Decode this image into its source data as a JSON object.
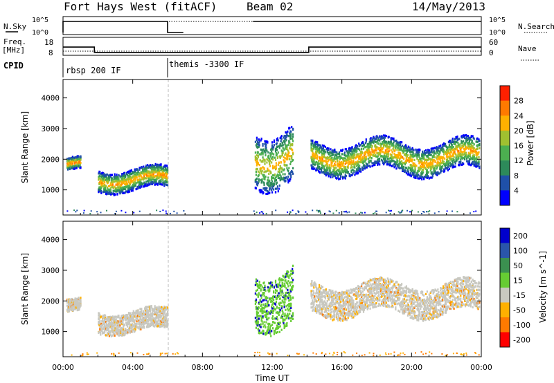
{
  "header": {
    "station": "Fort Hays West (fitACF)",
    "beam": "Beam 02",
    "date": "14/May/2013"
  },
  "left_labels": {
    "nsky": "N.Sky",
    "freq_line1": "Freq.",
    "freq_line2": "[MHz]",
    "cpid": "CPID"
  },
  "right_labels": {
    "nsearch": "N.Search",
    "nave": "Nave"
  },
  "cpid_segments": [
    {
      "label": "rbsp 200 IF",
      "start": 0,
      "end": 6
    },
    {
      "label": "themis -3300 IF",
      "start": 6,
      "end": 24
    }
  ],
  "x_axis": {
    "label": "Time UT",
    "range": [
      0,
      24
    ],
    "ticks": [
      0,
      4,
      8,
      12,
      16,
      20,
      24
    ],
    "tick_labels": [
      "00:00",
      "04:00",
      "08:00",
      "12:00",
      "16:00",
      "20:00",
      "00:00"
    ]
  },
  "colors": {
    "power_scale": [
      "#0000ff",
      "#1f50a8",
      "#2d8a5a",
      "#4caf50",
      "#a0c030",
      "#ffb000",
      "#ff7a00",
      "#ff2000"
    ],
    "velocity_scale": [
      "#0000cc",
      "#2a55aa",
      "#3b9050",
      "#66cc33",
      "#c8c8c0",
      "#ffb000",
      "#ff7a00",
      "#ff0000"
    ]
  },
  "chart_data": [
    {
      "type": "line",
      "name": "noise-panel",
      "ylabel_left": "N.Sky",
      "ylabel_right": "N.Search",
      "left_ticks": [
        "10^5",
        "10^0"
      ],
      "right_ticks": [
        "10^5",
        "10^0"
      ],
      "series": [
        {
          "name": "N.Sky",
          "style": "solid",
          "x": [
            0,
            0,
            0.1,
            6,
            6,
            6.9,
            6.9,
            10.9,
            10.9,
            24
          ],
          "y": [
            "low",
            "high",
            "high",
            "high",
            "low",
            "low",
            "none",
            "none",
            "high",
            "high"
          ]
        },
        {
          "name": "N.Search",
          "style": "dotted",
          "x": [
            0.1,
            6.9,
            10.9,
            24
          ],
          "y": [
            "high",
            "high",
            "high",
            "high"
          ]
        }
      ]
    },
    {
      "type": "line",
      "name": "frequency-nave-panel",
      "ylabel_left": "Freq. [MHz]",
      "ylabel_right": "Nave",
      "left_ticks": [
        18,
        8
      ],
      "right_ticks": [
        60,
        0
      ],
      "ylim_left": [
        8,
        18
      ],
      "ylim_right": [
        0,
        60
      ],
      "series": [
        {
          "name": "Freq.",
          "style": "solid",
          "x": [
            0,
            1.8,
            1.8,
            6.9,
            10.9,
            14.1,
            14.1,
            24
          ],
          "y": [
            15.6,
            15.6,
            10.5,
            10.5,
            10.5,
            10.5,
            15.6,
            15.6
          ]
        },
        {
          "name": "Nave",
          "style": "dotted",
          "x": [
            0,
            6.9,
            10.9,
            24
          ],
          "y": [
            24,
            24,
            24,
            24
          ]
        }
      ]
    },
    {
      "type": "heatmap",
      "name": "power",
      "ylabel": "Slant Range [km]",
      "xlabel": "Time UT",
      "ylim": [
        180,
        4600
      ],
      "y_ticks": [
        1000,
        2000,
        3000,
        4000
      ],
      "colorbar": {
        "label": "Power [dB]",
        "ticks": [
          4,
          8,
          12,
          16,
          20,
          24,
          28
        ],
        "range": [
          0,
          32
        ]
      },
      "data_gap": [
        6.9,
        10.9
      ],
      "echo_bands": [
        {
          "x": [
            0.2,
            1.0
          ],
          "range_km": [
            1600,
            2100
          ],
          "value_db": 22
        },
        {
          "x": [
            2.0,
            6.0
          ],
          "range_km": [
            950,
            1800
          ],
          "value_db": 20
        },
        {
          "x": [
            11.0,
            13.2
          ],
          "range_km": [
            1100,
            3300
          ],
          "value_db": 18
        },
        {
          "x": [
            14.2,
            23.9
          ],
          "range_km": [
            1500,
            2700
          ],
          "value_db": 20
        }
      ]
    },
    {
      "type": "heatmap",
      "name": "velocity",
      "ylabel": "Slant Range [km]",
      "xlabel": "Time UT",
      "ylim": [
        180,
        4600
      ],
      "y_ticks": [
        1000,
        2000,
        3000,
        4000
      ],
      "colorbar": {
        "label": "Velocity [m s^-1]",
        "tick_labels": [
          "200",
          "100",
          "50",
          "15",
          "-15",
          "-50",
          "-100",
          "-200"
        ]
      },
      "data_gap": [
        6.9,
        10.9
      ],
      "echo_bands": [
        {
          "x": [
            0.2,
            1.0
          ],
          "range_km": [
            1600,
            2100
          ],
          "value_ms": 0
        },
        {
          "x": [
            2.0,
            6.0
          ],
          "range_km": [
            950,
            1800
          ],
          "value_ms": 0
        },
        {
          "x": [
            11.0,
            13.2
          ],
          "range_km": [
            1100,
            3300
          ],
          "value_ms": 60
        },
        {
          "x": [
            14.2,
            23.9
          ],
          "range_km": [
            1500,
            2700
          ],
          "value_ms": 0
        }
      ]
    }
  ]
}
